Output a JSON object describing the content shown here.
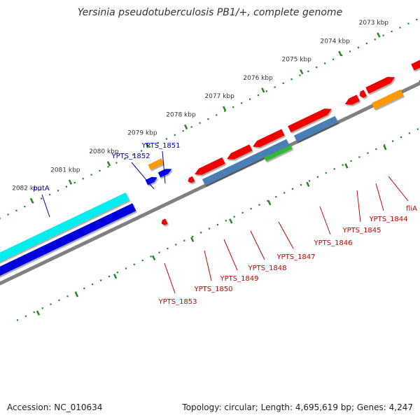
{
  "title": "Yersinia pseudotuberculosis PB1/+, complete genome",
  "footer": {
    "accession": "Accession: NC_010634",
    "summary": "Topology: circular; Length: 4,695,619 bp; Genes: 4,247"
  },
  "colors": {
    "axis": "#808080",
    "tick": "#228822",
    "tick_label": "#333333",
    "label_blue": "#0000aa",
    "label_red": "#cc0000",
    "leader_blue": "#0000aa",
    "leader_red": "#cc0000"
  },
  "ticks": [
    {
      "label": "2082 kbp"
    },
    {
      "label": "2081 kbp"
    },
    {
      "label": "2080 kbp"
    },
    {
      "label": "2079 kbp"
    },
    {
      "label": "2078 kbp"
    },
    {
      "label": "2077 kbp"
    },
    {
      "label": "2076 kbp"
    },
    {
      "label": "2075 kbp"
    },
    {
      "label": "2074 kbp"
    },
    {
      "label": "2073 kbp"
    }
  ],
  "feature_labels": [
    {
      "text": "putA",
      "color": "blue"
    },
    {
      "text": "YPTS_1852",
      "color": "blue"
    },
    {
      "text": "YPTS_1851",
      "color": "blue"
    },
    {
      "text": "YPTS_1853",
      "color": "red"
    },
    {
      "text": "YPTS_1850",
      "color": "red"
    },
    {
      "text": "YPTS_1849",
      "color": "red"
    },
    {
      "text": "YPTS_1848",
      "color": "red"
    },
    {
      "text": "YPTS_1847",
      "color": "red"
    },
    {
      "text": "YPTS_1846",
      "color": "red"
    },
    {
      "text": "YPTS_1845",
      "color": "red"
    },
    {
      "text": "YPTS_1844",
      "color": "red"
    },
    {
      "text": "fliA",
      "color": "red"
    }
  ],
  "features": [
    {
      "name": "putA-gene",
      "color": "#00eeee"
    },
    {
      "name": "blue-long-gene",
      "color": "#0000dd"
    },
    {
      "name": "YPTS_1852-gene",
      "color": "#0000ee"
    },
    {
      "name": "YPTS_1851-gene",
      "color": "#0000ee"
    },
    {
      "name": "orange-gene-top",
      "color": "#ff9900"
    },
    {
      "name": "YPTS_1853-gene",
      "color": "#ee0000"
    },
    {
      "name": "red-marker-a",
      "color": "#ee0000"
    },
    {
      "name": "YPTS_1850-gene",
      "color": "#ee0000"
    },
    {
      "name": "YPTS_1849-gene",
      "color": "#ee0000"
    },
    {
      "name": "YPTS_1848-gene",
      "color": "#ee0000"
    },
    {
      "name": "YPTS_1847-gene",
      "color": "#ee0000"
    },
    {
      "name": "steel-gene-a",
      "color": "#4a7fb5"
    },
    {
      "name": "steel-gene-b",
      "color": "#4a7fb5"
    },
    {
      "name": "steel-gene-c",
      "color": "#4a7fb5"
    },
    {
      "name": "green-gene",
      "color": "#33bb33"
    },
    {
      "name": "YPTS_1846-gene",
      "color": "#4a7fb5"
    },
    {
      "name": "YPTS_1845-gene",
      "color": "#ee0000"
    },
    {
      "name": "red-marker-b",
      "color": "#ee0000"
    },
    {
      "name": "YPTS_1844-gene",
      "color": "#ee0000"
    },
    {
      "name": "orange-gene-right",
      "color": "#ff9900"
    },
    {
      "name": "fliA-gene",
      "color": "#ee0000"
    },
    {
      "name": "green-gene-right",
      "color": "#228822"
    }
  ]
}
